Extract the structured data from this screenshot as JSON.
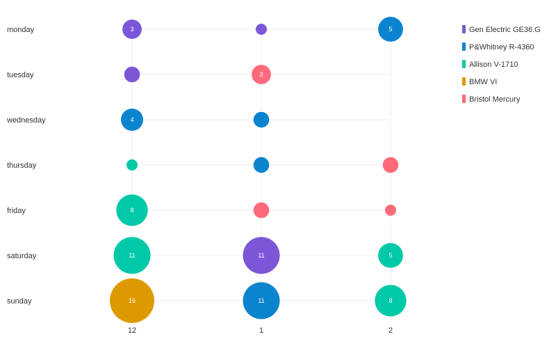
{
  "chart_data": {
    "type": "scatter",
    "subtype": "bubble-matrix",
    "title": "",
    "xlabel": "",
    "ylabel": "",
    "categories_x": [
      "12",
      "1",
      "2"
    ],
    "categories_y": [
      "monday",
      "tuesday",
      "wednesday",
      "thursday",
      "friday",
      "saturday",
      "sunday"
    ],
    "series": [
      {
        "name": "Gen Electric GE36.G",
        "color": "#7b57d8"
      },
      {
        "name": "P&Whitney R-4360",
        "color": "#0b84cf"
      },
      {
        "name": "Allison V-1710",
        "color": "#00c9a8"
      },
      {
        "name": "BMW VI",
        "color": "#dd9a00"
      },
      {
        "name": "Bristol Mercury",
        "color": "#fe6a7a"
      }
    ],
    "points": [
      {
        "x": "12",
        "y": "monday",
        "series": 0,
        "value": 3,
        "label": "3"
      },
      {
        "x": "1",
        "y": "monday",
        "series": 0,
        "value": 1,
        "label": ""
      },
      {
        "x": "2",
        "y": "monday",
        "series": 1,
        "value": 5,
        "label": "5"
      },
      {
        "x": "12",
        "y": "tuesday",
        "series": 0,
        "value": 2,
        "label": ""
      },
      {
        "x": "1",
        "y": "tuesday",
        "series": 4,
        "value": 3,
        "label": "3"
      },
      {
        "x": "12",
        "y": "wednesday",
        "series": 1,
        "value": 4,
        "label": "4"
      },
      {
        "x": "1",
        "y": "wednesday",
        "series": 1,
        "value": 2,
        "label": ""
      },
      {
        "x": "12",
        "y": "thursday",
        "series": 2,
        "value": 1,
        "label": ""
      },
      {
        "x": "1",
        "y": "thursday",
        "series": 1,
        "value": 2,
        "label": ""
      },
      {
        "x": "2",
        "y": "thursday",
        "series": 4,
        "value": 2,
        "label": ""
      },
      {
        "x": "12",
        "y": "friday",
        "series": 2,
        "value": 8,
        "label": "8"
      },
      {
        "x": "1",
        "y": "friday",
        "series": 4,
        "value": 2,
        "label": ""
      },
      {
        "x": "2",
        "y": "friday",
        "series": 4,
        "value": 1,
        "label": ""
      },
      {
        "x": "12",
        "y": "saturday",
        "series": 2,
        "value": 11,
        "label": "11"
      },
      {
        "x": "1",
        "y": "saturday",
        "series": 0,
        "value": 11,
        "label": "11"
      },
      {
        "x": "2",
        "y": "saturday",
        "series": 2,
        "value": 5,
        "label": "5"
      },
      {
        "x": "12",
        "y": "sunday",
        "series": 3,
        "value": 16,
        "label": "16"
      },
      {
        "x": "1",
        "y": "sunday",
        "series": 1,
        "value": 11,
        "label": "11"
      },
      {
        "x": "2",
        "y": "sunday",
        "series": 2,
        "value": 8,
        "label": "8"
      }
    ],
    "grid": true,
    "legend_position": "top-right"
  }
}
